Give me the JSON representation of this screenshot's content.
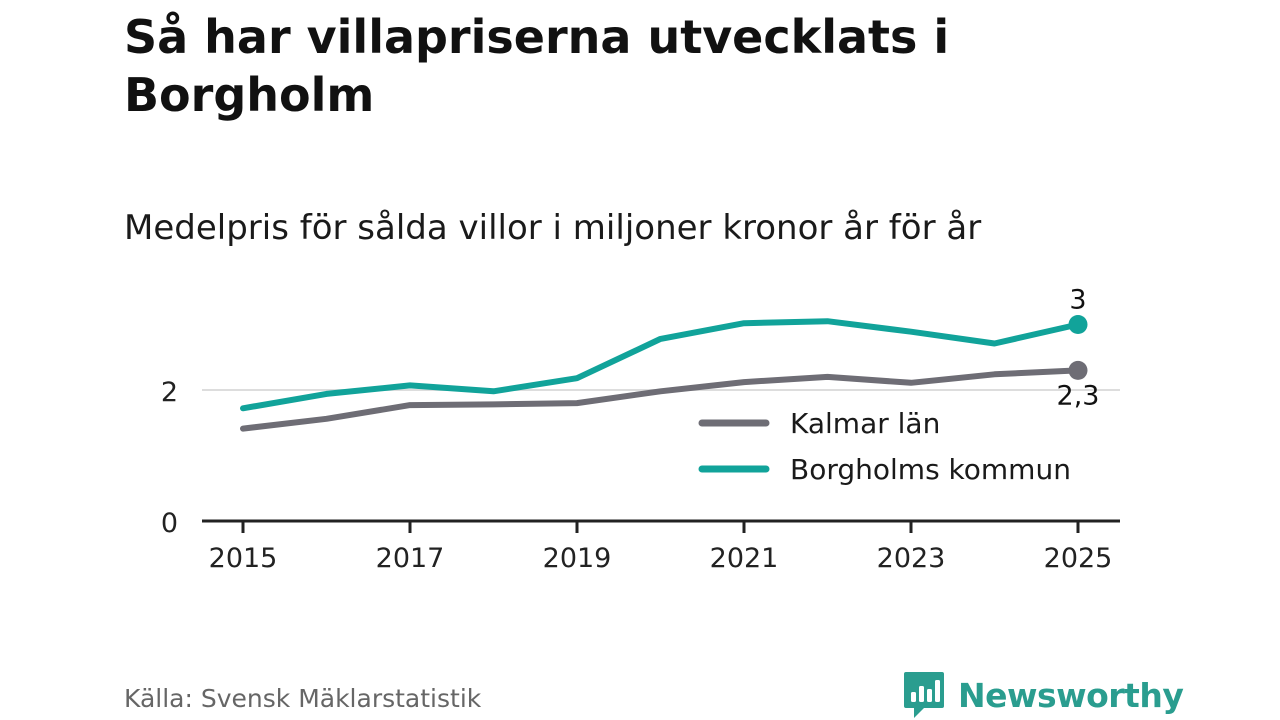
{
  "header": {
    "title": "Så har villapriserna utvecklats i Borgholm",
    "subtitle": "Medelpris för sålda villor i miljoner kronor år för år"
  },
  "footer": {
    "source": "Källa: Svensk Mäklarstatistik",
    "brand": "Newsworthy",
    "brand_icon": "bar-chart-speech-bubble-icon"
  },
  "colors": {
    "kalmar": "#6e6d75",
    "borgholm": "#11a39a",
    "grid": "#dddddd",
    "axis": "#222222",
    "brand": "#2a9d8f"
  },
  "chart_data": {
    "type": "line",
    "x": [
      2015,
      2016,
      2017,
      2018,
      2019,
      2020,
      2021,
      2022,
      2023,
      2024,
      2025
    ],
    "x_ticks": [
      "2015",
      "2017",
      "2019",
      "2021",
      "2023",
      "2025"
    ],
    "y_ticks": [
      "0",
      "2"
    ],
    "ylim": [
      0,
      3.5
    ],
    "grid": "horizontal at 2",
    "legend": "inside, right of center",
    "series": [
      {
        "name": "Kalmar län",
        "values": [
          1.41,
          1.56,
          1.77,
          1.78,
          1.8,
          1.98,
          2.12,
          2.2,
          2.11,
          2.24,
          2.3
        ],
        "end_label": "2,3"
      },
      {
        "name": "Borgholms kommun",
        "values": [
          1.72,
          1.94,
          2.07,
          1.98,
          2.18,
          2.78,
          3.02,
          3.05,
          2.89,
          2.71,
          3.0
        ],
        "end_label": "3"
      }
    ]
  }
}
